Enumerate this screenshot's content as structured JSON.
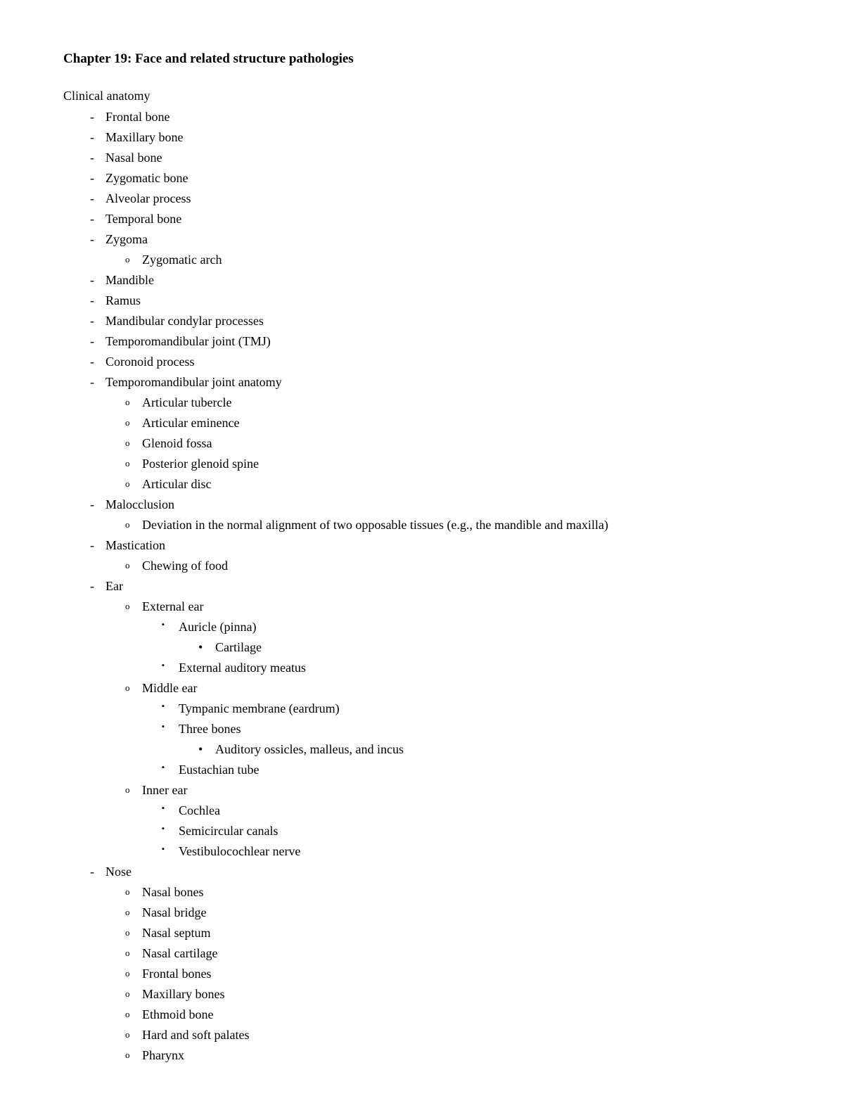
{
  "title": "Chapter 19: Face and related structure pathologies",
  "subtitle": "Clinical anatomy",
  "items": [
    {
      "level": 1,
      "text": "Frontal bone"
    },
    {
      "level": 1,
      "text": "Maxillary bone"
    },
    {
      "level": 1,
      "text": "Nasal bone"
    },
    {
      "level": 1,
      "text": "Zygomatic bone"
    },
    {
      "level": 1,
      "text": "Alveolar process"
    },
    {
      "level": 1,
      "text": "Temporal bone"
    },
    {
      "level": 1,
      "text": "Zygoma"
    },
    {
      "level": 2,
      "text": "Zygomatic arch"
    },
    {
      "level": 1,
      "text": "Mandible"
    },
    {
      "level": 1,
      "text": "Ramus"
    },
    {
      "level": 1,
      "text": "Mandibular condylar processes"
    },
    {
      "level": 1,
      "text": "Temporomandibular joint (TMJ)"
    },
    {
      "level": 1,
      "text": "Coronoid process"
    },
    {
      "level": 1,
      "text": "Temporomandibular joint anatomy"
    },
    {
      "level": 2,
      "text": "Articular tubercle"
    },
    {
      "level": 2,
      "text": "Articular eminence"
    },
    {
      "level": 2,
      "text": "Glenoid fossa"
    },
    {
      "level": 2,
      "text": "Posterior glenoid spine"
    },
    {
      "level": 2,
      "text": "Articular disc"
    },
    {
      "level": 1,
      "text": "Malocclusion"
    },
    {
      "level": 2,
      "text": "Deviation in the normal alignment of two opposable tissues (e.g., the mandible and maxilla)"
    },
    {
      "level": 1,
      "text": "Mastication"
    },
    {
      "level": 2,
      "text": "Chewing of food"
    },
    {
      "level": 1,
      "text": "Ear"
    },
    {
      "level": 2,
      "text": "External ear"
    },
    {
      "level": 3,
      "text": "Auricle (pinna)"
    },
    {
      "level": 4,
      "text": "Cartilage"
    },
    {
      "level": 3,
      "text": "External auditory meatus"
    },
    {
      "level": 2,
      "text": "Middle ear"
    },
    {
      "level": 3,
      "text": "Tympanic membrane (eardrum)"
    },
    {
      "level": 3,
      "text": "Three bones"
    },
    {
      "level": 4,
      "text": "Auditory ossicles, malleus, and incus"
    },
    {
      "level": 3,
      "text": "Eustachian tube"
    },
    {
      "level": 2,
      "text": "Inner ear"
    },
    {
      "level": 3,
      "text": "Cochlea"
    },
    {
      "level": 3,
      "text": "Semicircular canals"
    },
    {
      "level": 3,
      "text": "Vestibulocochlear nerve"
    },
    {
      "level": 1,
      "text": "Nose"
    },
    {
      "level": 2,
      "text": "Nasal bones"
    },
    {
      "level": 2,
      "text": "Nasal bridge"
    },
    {
      "level": 2,
      "text": "Nasal septum"
    },
    {
      "level": 2,
      "text": "Nasal cartilage"
    },
    {
      "level": 2,
      "text": "Frontal bones"
    },
    {
      "level": 2,
      "text": "Maxillary bones"
    },
    {
      "level": 2,
      "text": "Ethmoid bone"
    },
    {
      "level": 2,
      "text": "Hard and soft palates"
    },
    {
      "level": 2,
      "text": "Pharynx"
    }
  ]
}
